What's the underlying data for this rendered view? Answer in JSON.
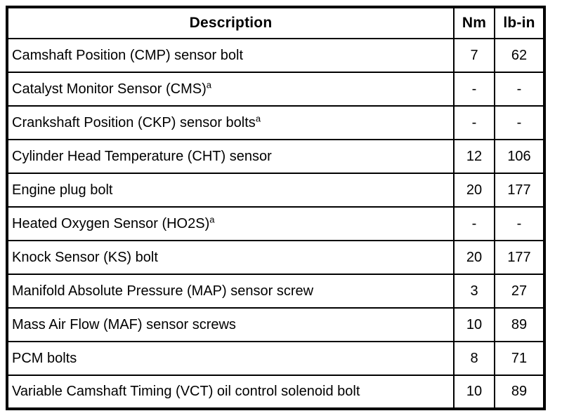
{
  "table": {
    "columns": [
      "Description",
      "Nm",
      "lb-in"
    ],
    "rows": [
      {
        "description": "Camshaft Position (CMP) sensor bolt",
        "footnote": "",
        "nm": "7",
        "lb_in": "62"
      },
      {
        "description": "Catalyst Monitor Sensor (CMS)",
        "footnote": "a",
        "nm": "-",
        "lb_in": "-"
      },
      {
        "description": "Crankshaft Position (CKP) sensor bolts",
        "footnote": "a",
        "nm": "-",
        "lb_in": "-"
      },
      {
        "description": "Cylinder Head Temperature (CHT) sensor",
        "footnote": "",
        "nm": "12",
        "lb_in": "106"
      },
      {
        "description": "Engine plug bolt",
        "footnote": "",
        "nm": "20",
        "lb_in": "177"
      },
      {
        "description": "Heated Oxygen Sensor (HO2S)",
        "footnote": "a",
        "nm": "-",
        "lb_in": "-"
      },
      {
        "description": "Knock Sensor (KS) bolt",
        "footnote": "",
        "nm": "20",
        "lb_in": "177"
      },
      {
        "description": "Manifold Absolute Pressure (MAP) sensor screw",
        "footnote": "",
        "nm": "3",
        "lb_in": "27"
      },
      {
        "description": "Mass Air Flow (MAF) sensor screws",
        "footnote": "",
        "nm": "10",
        "lb_in": "89"
      },
      {
        "description": "PCM bolts",
        "footnote": "",
        "nm": "8",
        "lb_in": "71"
      },
      {
        "description": "Variable Camshaft Timing (VCT) oil control solenoid bolt",
        "footnote": "",
        "nm": "10",
        "lb_in": "89"
      }
    ]
  },
  "colors": {
    "text": "#000000",
    "background": "#ffffff",
    "border": "#000000"
  },
  "chart_data": {
    "type": "table",
    "title": "",
    "columns": [
      "Description",
      "Nm",
      "lb-in"
    ],
    "rows_nm": [
      7,
      null,
      null,
      12,
      20,
      null,
      20,
      3,
      10,
      8,
      10
    ],
    "rows_lb_in": [
      62,
      null,
      null,
      106,
      177,
      null,
      177,
      27,
      89,
      71,
      89
    ]
  }
}
